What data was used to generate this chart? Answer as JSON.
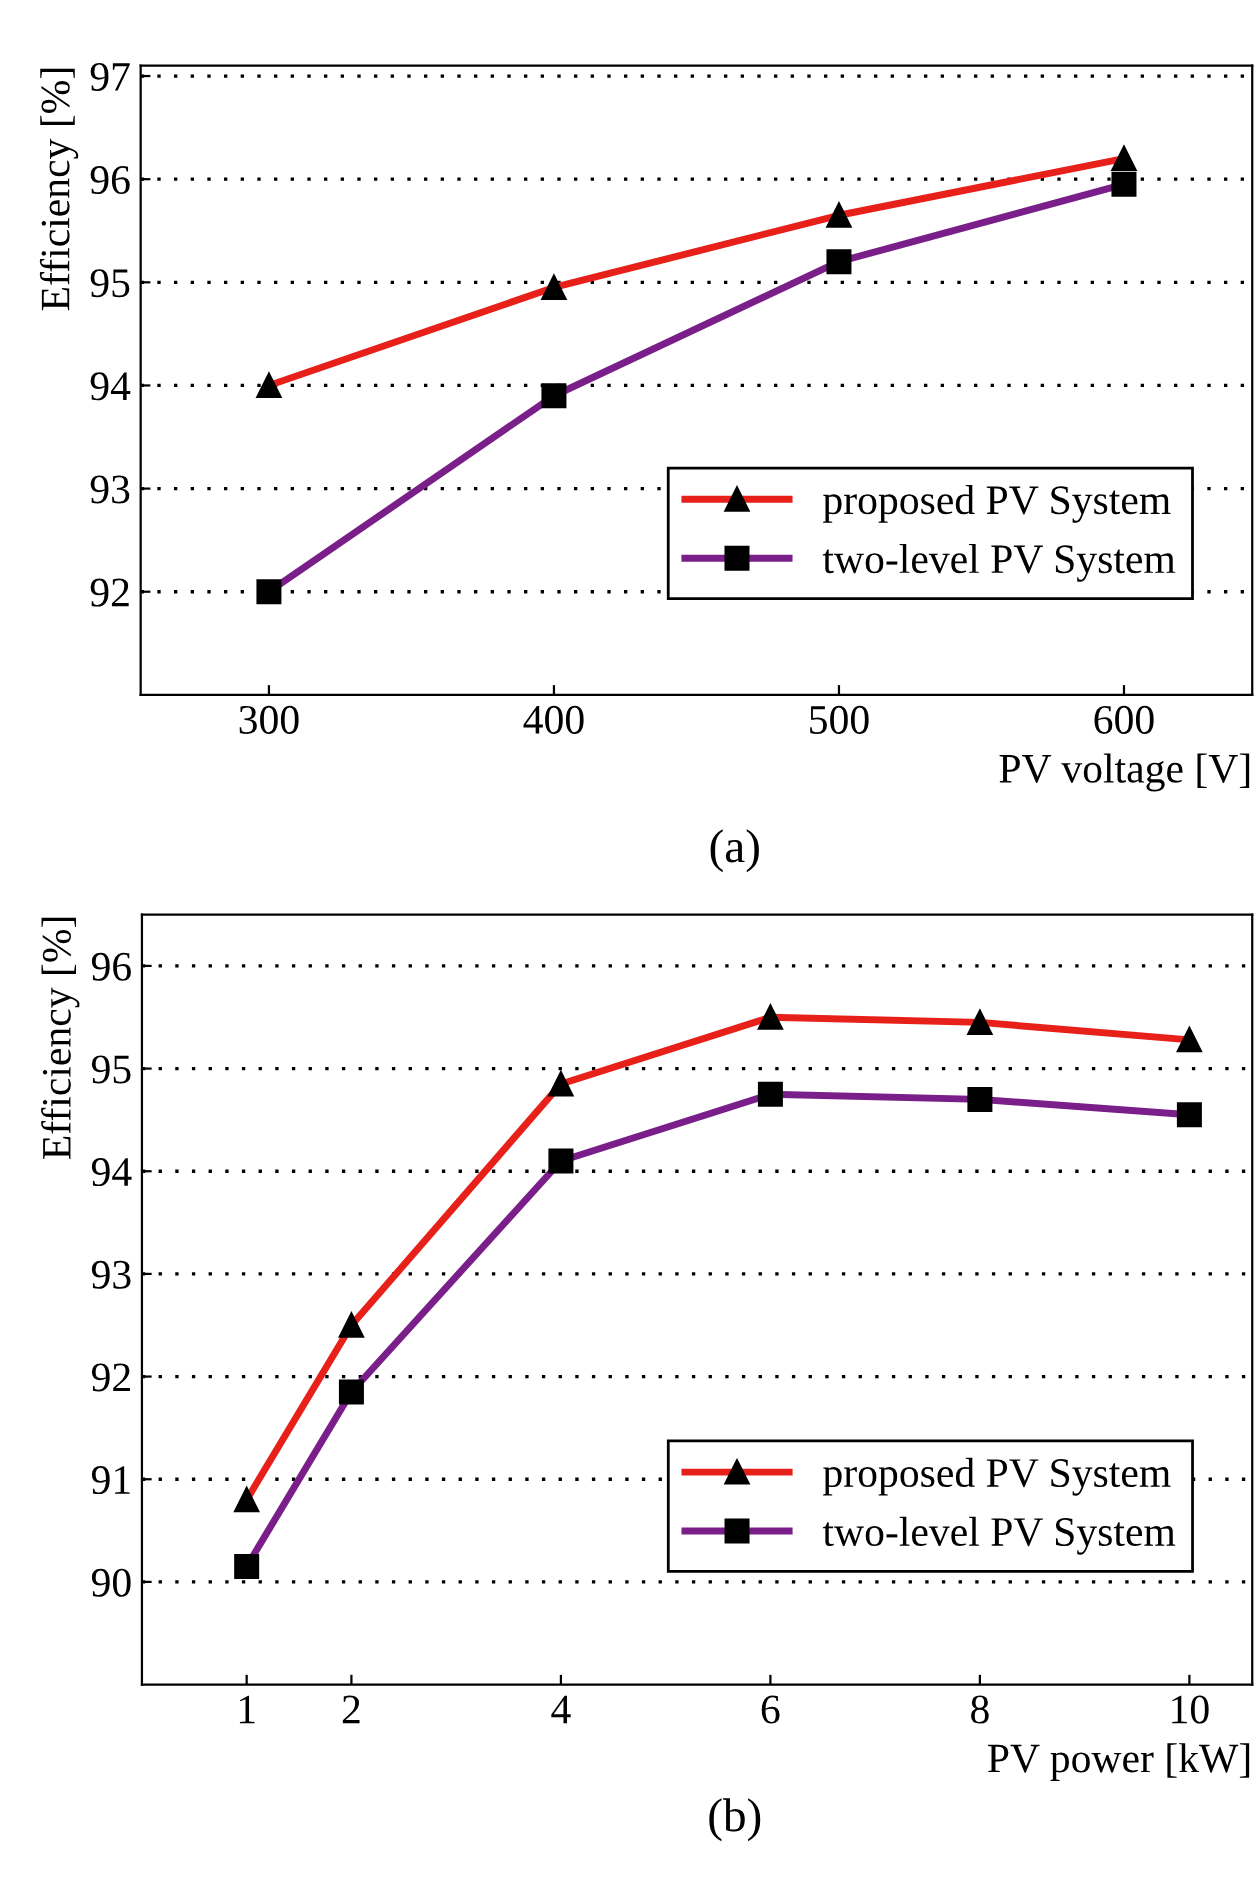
{
  "chart_data": [
    {
      "type": "line",
      "xlabel": "PV voltage [V]",
      "ylabel": "Efficiency [%]",
      "x": [
        300,
        400,
        500,
        600
      ],
      "series": [
        {
          "name": "proposed PV System",
          "color": "#e8201a",
          "values": [
            94.0,
            94.95,
            95.65,
            96.2
          ],
          "marker": "triangle"
        },
        {
          "name": "two-level PV System",
          "color": "#7a1f8a",
          "values": [
            92.0,
            93.9,
            95.2,
            95.95
          ],
          "marker": "square"
        }
      ],
      "xlim": [
        255,
        645
      ],
      "ylim": [
        91,
        97.1
      ],
      "xticks": [
        300,
        400,
        500,
        600
      ],
      "yticks": [
        92,
        93,
        94,
        95,
        96,
        97
      ],
      "grid": "y",
      "legend": "bottom right",
      "line_style": "solid",
      "annotations": [
        "(a)"
      ]
    },
    {
      "type": "line",
      "xlabel": "PV power [kW]",
      "ylabel": "Efficiency [%]",
      "x": [
        1,
        2,
        4,
        6,
        8,
        10
      ],
      "series": [
        {
          "name": "proposed PV System",
          "color": "#e8201a",
          "values": [
            90.8,
            92.5,
            94.85,
            95.5,
            95.45,
            95.28
          ],
          "marker": "triangle"
        },
        {
          "name": "two-level PV System",
          "color": "#7a1f8a",
          "values": [
            90.15,
            91.85,
            94.1,
            94.75,
            94.7,
            94.55
          ],
          "marker": "square"
        }
      ],
      "xlim": [
        0,
        10.6
      ],
      "ylim": [
        89,
        96.5
      ],
      "xticks": [
        1,
        2,
        4,
        6,
        8,
        10
      ],
      "yticks": [
        90,
        91,
        92,
        93,
        94,
        95,
        96
      ],
      "grid": "y",
      "legend": "bottom right",
      "line_style": "solid",
      "annotations": [
        "(b)"
      ]
    }
  ]
}
